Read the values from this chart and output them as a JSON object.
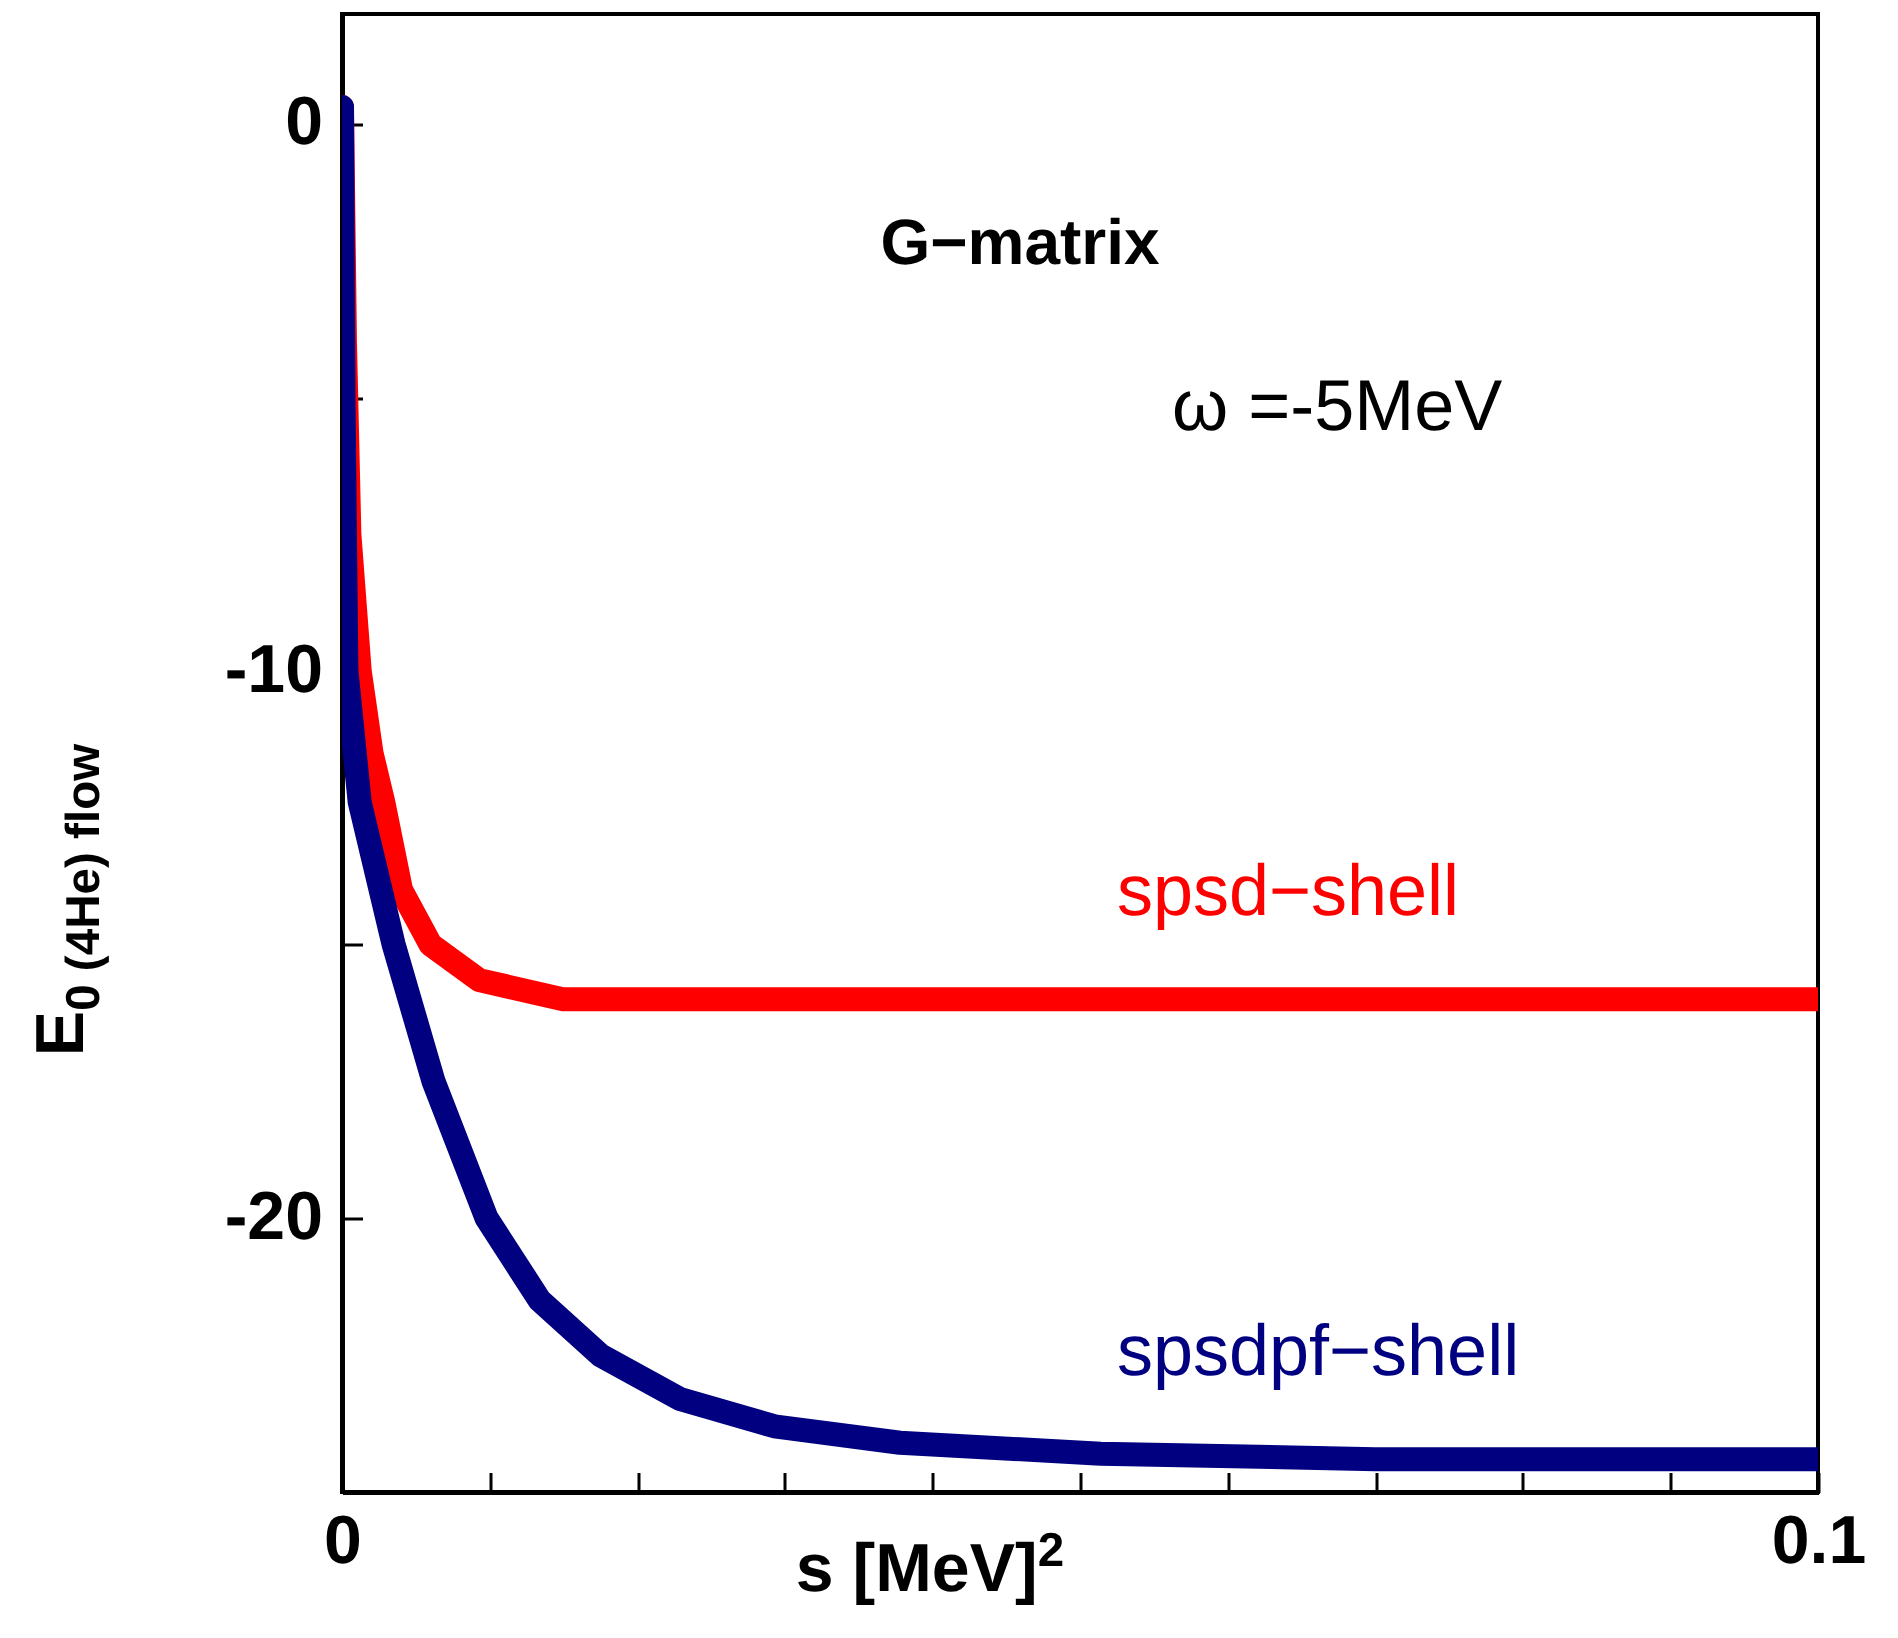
{
  "chart_data": {
    "type": "line",
    "xlabel": "s [MeV]$^{2}$",
    "ylabel": "E$_{0 (4He) flow}$",
    "annotations": [
      "G−matrix",
      "ω  =-5MeV"
    ],
    "series": [
      {
        "name": "spsd−shell",
        "color": "#ff0000",
        "x": [
          0,
          0.0002,
          0.0005,
          0.0012,
          0.002,
          0.0028,
          0.004,
          0.006,
          0.0093,
          0.015,
          0.025,
          0.05,
          0.1
        ],
        "values": [
          0.3,
          -4,
          -7.5,
          -10,
          -11.5,
          -12.4,
          -14,
          -15,
          -15.65,
          -16,
          -16,
          -16,
          -16
        ]
      },
      {
        "name": "spsdpf−shell",
        "color": "#000080",
        "x": [
          0,
          0.0001,
          0.0003,
          0.0012,
          0.0035,
          0.0062,
          0.0098,
          0.0134,
          0.0175,
          0.0229,
          0.0293,
          0.0378,
          0.0514,
          0.07,
          0.1
        ],
        "values": [
          0.3,
          -5,
          -10,
          -12.4,
          -15,
          -17.5,
          -20,
          -21.5,
          -22.5,
          -23.3,
          -23.8,
          -24.1,
          -24.3,
          -24.4,
          -24.4
        ]
      }
    ],
    "xlim": [
      0,
      0.1
    ],
    "ylim": [
      -25,
      2
    ],
    "xticks": [
      0,
      {
        "value": 0.01,
        "label": null
      },
      {
        "value": 0.02,
        "label": null
      },
      {
        "value": 0.03,
        "label": null
      },
      {
        "value": 0.04,
        "label": null
      },
      {
        "value": 0.05,
        "label": null
      },
      {
        "value": 0.06,
        "label": null
      },
      {
        "value": 0.07,
        "label": null
      },
      {
        "value": 0.08,
        "label": null
      },
      {
        "value": 0.09,
        "label": null
      },
      0.1
    ],
    "yticks": [
      {
        "value": -25,
        "label": null
      },
      -20,
      {
        "value": -15,
        "label": null
      },
      -10,
      {
        "value": -5,
        "label": null
      },
      0
    ],
    "grid": false,
    "marker": "none",
    "line_style": "solid"
  }
}
